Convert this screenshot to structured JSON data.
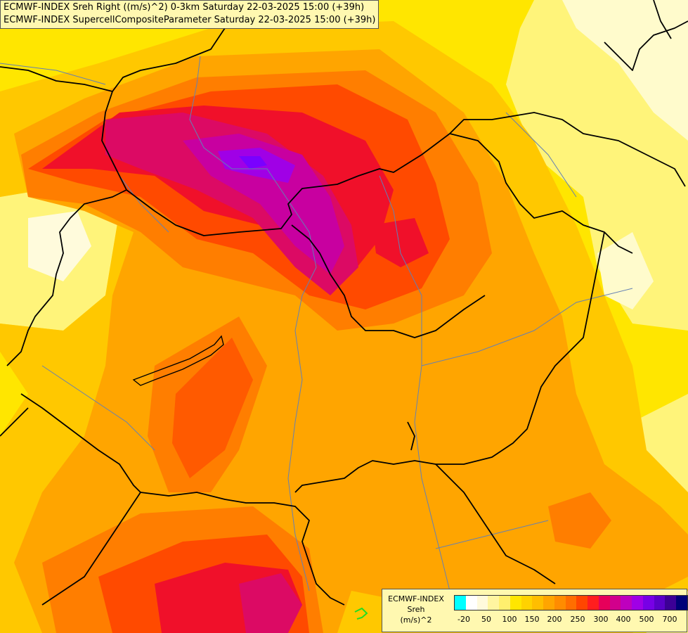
{
  "title": {
    "line1": "ECMWF-INDEX Sreh Right ((m/s)^2) 0-3km Saturday 22-03-2025 15:00 (+39h)",
    "line2": "ECMWF-INDEX SupercellCompositeParameter Saturday 22-03-2025 15:00 (+39h)"
  },
  "legend": {
    "line1": "ECMWF-INDEX",
    "line2": "Sreh",
    "line3": "(m/s)^2",
    "colors": [
      "#00ffff",
      "#ffffff",
      "#fffadc",
      "#fff5a0",
      "#ffef6e",
      "#ffe600",
      "#ffd200",
      "#ffbe00",
      "#ffa500",
      "#ff8c00",
      "#ff6e00",
      "#ff4600",
      "#ff1e1e",
      "#e6005a",
      "#d2008c",
      "#be00be",
      "#a000e6",
      "#7800e6",
      "#5a00c8",
      "#3c0096",
      "#000078"
    ],
    "ticks": [
      "-20",
      "50",
      "100",
      "150",
      "200",
      "250",
      "300",
      "400",
      "500",
      "700"
    ]
  },
  "map": {
    "field_colors": {
      "yellow": "#fff000",
      "light_yellow": "#fffaa0",
      "pale": "#fffbdc",
      "gold": "#ffc800",
      "orange": "#ffa000",
      "dark_orange": "#ff7800",
      "red_orange": "#ff4600",
      "red": "#f01e3c",
      "crimson": "#dc0a64",
      "magenta": "#c800a0",
      "purple": "#a000e6"
    },
    "border_color": "#000000",
    "river_color": "#6480b4"
  }
}
